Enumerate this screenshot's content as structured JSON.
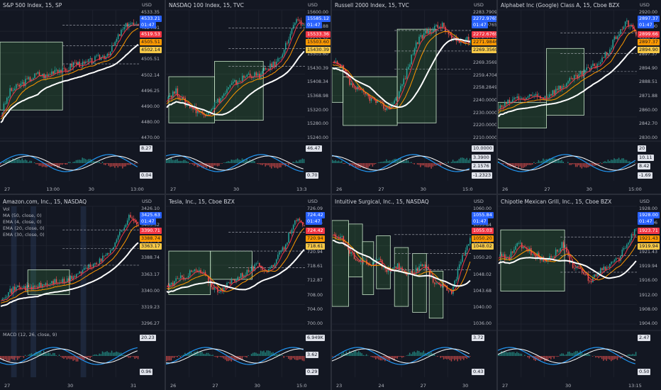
{
  "panels": [
    {
      "title": "S&P 500 Index, 15, SP",
      "currency": "USD",
      "price_ticks": [
        "4533.35",
        "4524.91",
        "4519.53",
        "4505.51",
        "4502.14",
        "4496.25",
        "4490.00",
        "4480.00",
        "4470.00"
      ],
      "current": {
        "price": "4533.21",
        "timer": "01:47"
      },
      "indicator_tags": [
        "8.27",
        "0.04"
      ],
      "x_labels": [
        "27",
        "13:00",
        "30",
        "13:00"
      ]
    },
    {
      "title": "NASDAQ 100 Index, 15, TVC",
      "currency": "USD",
      "price_ticks": [
        "15600.00",
        "15582.88",
        "15533.36",
        "15503.60",
        "15430.39",
        "15408.34",
        "15368.98",
        "15320.00",
        "15280.00",
        "15240.00"
      ],
      "current": {
        "price": "15585.12",
        "timer": "01:47"
      },
      "indicator_tags": [
        "46.47",
        "0.70"
      ],
      "x_labels": [
        "27",
        "30",
        "13:3"
      ]
    },
    {
      "title": "Russell 2000 Index, 15, TVC",
      "currency": "USD",
      "price_ticks": [
        "2283.7909",
        "2272.9765",
        "2272.6769",
        "2271.9846",
        "2269.3569",
        "2259.4704",
        "2258.2849",
        "2240.0000",
        "2230.0000",
        "2220.0000",
        "2210.0000"
      ],
      "current": {
        "price": "2272.9765",
        "timer": "01:47"
      },
      "indicator_tags": [
        "10.0000",
        "3.3900",
        "2.1576",
        "-1.2323"
      ],
      "x_labels": [
        "26",
        "27",
        "30",
        "15:0"
      ]
    },
    {
      "title": "Alphabet Inc (Google) Class A, 15, Cboe BZX",
      "currency": "USD",
      "price_ticks": [
        "2920.00",
        "2910.00",
        "2899.66",
        "2897.37",
        "2894.90",
        "2888.51",
        "2871.88",
        "2860.00",
        "2842.70",
        "2830.00"
      ],
      "current": {
        "price": "2897.37",
        "timer": "01:47"
      },
      "indicator_tags": [
        "20",
        "10.11",
        "8.42",
        "-1.69"
      ],
      "x_labels": [
        "26",
        "27",
        "30",
        "15:00"
      ]
    },
    {
      "title": "Amazon.com, Inc., 15, NASDAQ",
      "currency": "USD",
      "legend": [
        "Vol",
        "MA (50, close, 0)",
        "EMA (4, close, 0)",
        "EMA (20, close, 0)",
        "EMA (30, close, 0)"
      ],
      "macd_label": "MACD (12, 26, close, 9)",
      "price_ticks": [
        "3426.10",
        "3403.52",
        "3390.71",
        "3388.74",
        "3363.17",
        "3340.00",
        "3319.23",
        "3296.27"
      ],
      "current": {
        "price": "3425.63",
        "timer": "01:47"
      },
      "indicator_tags": [
        "20.23",
        "0.96"
      ],
      "x_labels": [
        "27",
        "30",
        "31"
      ]
    },
    {
      "title": "Tesla, Inc., 15, Cboe BZX",
      "currency": "USD",
      "price_ticks": [
        "726.09",
        "725.35",
        "724.42",
        "720.94",
        "718.61",
        "712.87",
        "708.00",
        "704.00",
        "700.00"
      ],
      "current": {
        "price": "724.42",
        "timer": "01:47"
      },
      "indicator_tags": [
        "6.949K",
        "3.62",
        "0.29"
      ],
      "x_labels": [
        "26",
        "27",
        "30",
        "15:0"
      ]
    },
    {
      "title": "Intuitive Surgical, Inc., 15, NASDAQ",
      "currency": "USD",
      "price_ticks": [
        "1060.00",
        "1055.84",
        "1055.03",
        "1050.20",
        "1048.02",
        "1043.68",
        "1040.00",
        "1036.00"
      ],
      "current": {
        "price": "1055.84",
        "timer": "01:47"
      },
      "indicator_tags": [
        "3.72",
        "0.43"
      ],
      "x_labels": [
        "23",
        "24",
        "27",
        "30"
      ]
    },
    {
      "title": "Chipotle Mexican Grill, Inc., 15, Cboe BZX",
      "currency": "USD",
      "price_ticks": [
        "1928.00",
        "1927.96",
        "1923.71",
        "1921.43",
        "1919.94",
        "1916.00",
        "1912.00",
        "1908.00",
        "1904.00"
      ],
      "current": {
        "price": "1928.00",
        "timer": "01:47"
      },
      "indicator_tags": [
        "2.47",
        "0.50"
      ],
      "x_labels": [
        "27",
        "30",
        "13:15"
      ]
    }
  ]
}
